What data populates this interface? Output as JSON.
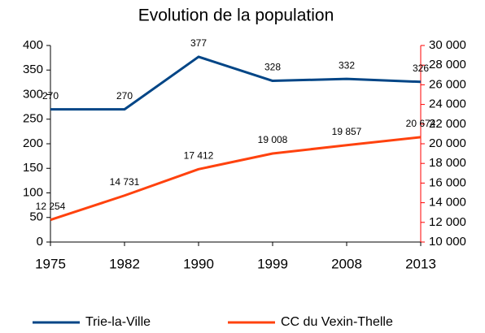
{
  "chart_data": {
    "type": "line",
    "title": "Evolution de la population",
    "categories": [
      "1975",
      "1982",
      "1990",
      "1999",
      "2008",
      "2013"
    ],
    "series": [
      {
        "name": "Trie-la-Ville",
        "color": "#004586",
        "values": [
          270,
          270,
          377,
          328,
          332,
          326
        ]
      },
      {
        "name": "CC du Vexin-Thelle",
        "color": "#ff420e",
        "axis": "y2",
        "values": [
          12254,
          14731,
          17412,
          19008,
          19857,
          20674
        ],
        "value_labels": [
          "12 254",
          "14 731",
          "17 412",
          "19 008",
          "19 857",
          "20 674"
        ]
      }
    ],
    "ylim": [
      0,
      400
    ],
    "yticks": [
      0,
      50,
      100,
      150,
      200,
      250,
      300,
      350,
      400
    ],
    "y2lim": [
      10000,
      30000
    ],
    "y2ticks": [
      {
        "value": 10000,
        "label": "10 000"
      },
      {
        "value": 12000,
        "label": "12 000"
      },
      {
        "value": 14000,
        "label": "14 000"
      },
      {
        "value": 16000,
        "label": "16 000"
      },
      {
        "value": 18000,
        "label": "18 000"
      },
      {
        "value": 20000,
        "label": "20 000"
      },
      {
        "value": 22000,
        "label": "22 000"
      },
      {
        "value": 24000,
        "label": "24 000"
      },
      {
        "value": 26000,
        "label": "26 000"
      },
      {
        "value": 28000,
        "label": "28 000"
      },
      {
        "value": 30000,
        "label": "30 000"
      }
    ],
    "y2_axis_color": "#ff0000",
    "grid": false
  }
}
